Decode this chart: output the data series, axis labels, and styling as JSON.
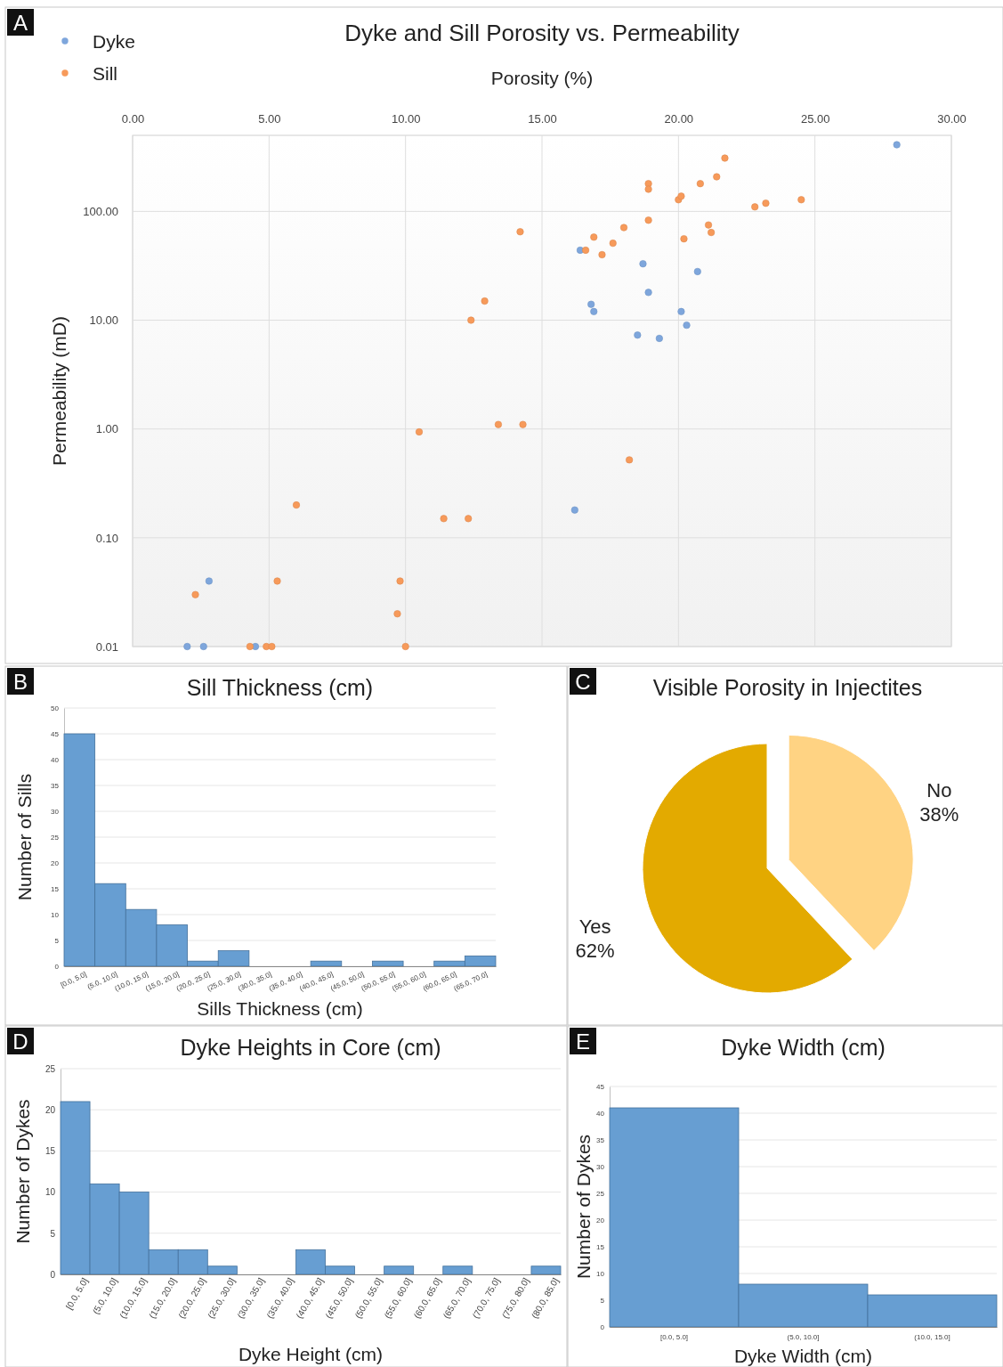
{
  "chart_data": [
    {
      "type": "scatter",
      "title": "Dyke and Sill Porosity vs. Permeability",
      "xlabel": "Porosity (%)",
      "ylabel": "Permeability (mD)",
      "annotations": [
        "A"
      ],
      "xlim": [
        0,
        30
      ],
      "xticks": [
        {
          "value": 0,
          "label": "0.00"
        },
        {
          "value": 5,
          "label": "5.00"
        },
        {
          "value": 10,
          "label": "10.00"
        },
        {
          "value": 15,
          "label": "15.00"
        },
        {
          "value": 20,
          "label": "20.00"
        },
        {
          "value": 25,
          "label": "25.00"
        },
        {
          "value": 30,
          "label": "30.00"
        }
      ],
      "ylim": [
        0.01,
        500
      ],
      "yticks": [
        0.01,
        {
          "value": 0.1,
          "label": "0.10"
        },
        {
          "value": 1,
          "label": "1.00"
        },
        {
          "value": 10,
          "label": "10.00"
        },
        {
          "value": 100,
          "label": "100.00"
        }
      ],
      "log": "y",
      "grid": true,
      "legend": "top left",
      "marker": "circle",
      "series": [
        {
          "name": "Dyke",
          "color": "#7ea6dc",
          "x": [
            2.0,
            2.6,
            2.8,
            4.5,
            16.4,
            18.7,
            20.7,
            18.9,
            16.8,
            16.9,
            20.1,
            20.3,
            18.5,
            19.3,
            16.2,
            28.0
          ],
          "values": [
            0.01,
            0.01,
            0.04,
            0.01,
            44,
            33,
            28,
            18,
            14,
            12,
            12,
            9,
            7.3,
            6.8,
            0.18,
            410
          ]
        },
        {
          "name": "Sill",
          "color": "#f79a5a",
          "x": [
            2.3,
            4.3,
            4.9,
            5.1,
            5.3,
            6.0,
            9.8,
            9.7,
            10.0,
            10.5,
            11.4,
            12.3,
            12.4,
            12.9,
            13.4,
            14.3,
            14.2,
            18.2,
            16.6,
            16.9,
            17.2,
            17.6,
            18.0,
            18.9,
            18.9,
            18.9,
            20.0,
            20.1,
            20.2,
            20.8,
            21.1,
            21.2,
            21.4,
            21.7,
            22.8,
            23.2,
            24.5
          ],
          "values": [
            0.03,
            0.01,
            0.01,
            0.01,
            0.04,
            0.2,
            0.04,
            0.02,
            0.01,
            0.94,
            0.15,
            0.15,
            10,
            15,
            1.1,
            1.1,
            65,
            0.52,
            44,
            58,
            40,
            51,
            71,
            83,
            180,
            160,
            128,
            138,
            56,
            180,
            75,
            64,
            208,
            309,
            110,
            119,
            128
          ]
        }
      ]
    },
    {
      "type": "bar",
      "title": "Sill Thickness (cm)",
      "xlabel": "Sills Thickness (cm)",
      "ylabel": "Number of Sills",
      "annotations": [
        "B"
      ],
      "categories": [
        "[0.0, 5.0]",
        "(5.0, 10.0]",
        "(10.0, 15.0]",
        "(15.0, 20.0]",
        "(20.0, 25.0]",
        "(25.0, 30.0]",
        "(30.0, 35.0]",
        "(35.0, 40.0]",
        "(40.0, 45.0]",
        "(45.0, 50.0]",
        "(50.0, 55.0]",
        "(55.0, 60.0]",
        "(60.0, 65.0]",
        "(65.0, 70.0]"
      ],
      "values": [
        45,
        16,
        11,
        8,
        1,
        3,
        0,
        0,
        1,
        0,
        1,
        0,
        1,
        2
      ],
      "color": "#679ed2",
      "ylim": [
        0,
        50
      ],
      "yticks": [
        0,
        5,
        10,
        15,
        20,
        25,
        30,
        35,
        40,
        45,
        50
      ],
      "grid": "y"
    },
    {
      "type": "pie",
      "title": "Visible Porosity in Injectites",
      "annotations": [
        "C"
      ],
      "categories": [
        "No",
        "Yes"
      ],
      "values": [
        38,
        62
      ],
      "colors": [
        "#ffd383",
        "#e3aa00"
      ],
      "value_labels": [
        "38%",
        "62%"
      ]
    },
    {
      "type": "bar",
      "title": "Dyke Heights in Core (cm)",
      "xlabel": "Dyke Height (cm)",
      "ylabel": "Number of Dykes",
      "annotations": [
        "D"
      ],
      "categories": [
        "[0.0, 5.0]",
        "(5.0, 10.0]",
        "(10.0, 15.0]",
        "(15.0, 20.0]",
        "(20.0, 25.0]",
        "(25.0, 30.0]",
        "(30.0, 35.0]",
        "(35.0, 40.0]",
        "(40.0, 45.0]",
        "(45.0, 50.0]",
        "(50.0, 55.0]",
        "(55.0, 60.0]",
        "(60.0, 65.0]",
        "(65.0, 70.0]",
        "(70.0, 75.0]",
        "(75.0, 80.0]",
        "(80.0, 85.0]"
      ],
      "values": [
        21,
        11,
        10,
        3,
        3,
        1,
        0,
        0,
        3,
        1,
        0,
        1,
        0,
        1,
        0,
        0,
        1
      ],
      "color": "#679ed2",
      "ylim": [
        0,
        25
      ],
      "yticks": [
        0,
        5,
        10,
        15,
        20,
        25
      ],
      "grid": "y"
    },
    {
      "type": "bar",
      "title": "Dyke Width (cm)",
      "xlabel": "Dyke Width (cm)",
      "ylabel": "Number of Dykes",
      "annotations": [
        "E"
      ],
      "categories": [
        "[0.0, 5.0]",
        "(5.0, 10.0]",
        "(10.0, 15.0]"
      ],
      "values": [
        41,
        8,
        6
      ],
      "color": "#679ed2",
      "ylim": [
        0,
        45
      ],
      "yticks": [
        0,
        5,
        10,
        15,
        20,
        25,
        30,
        35,
        40,
        45
      ],
      "grid": "y"
    }
  ]
}
